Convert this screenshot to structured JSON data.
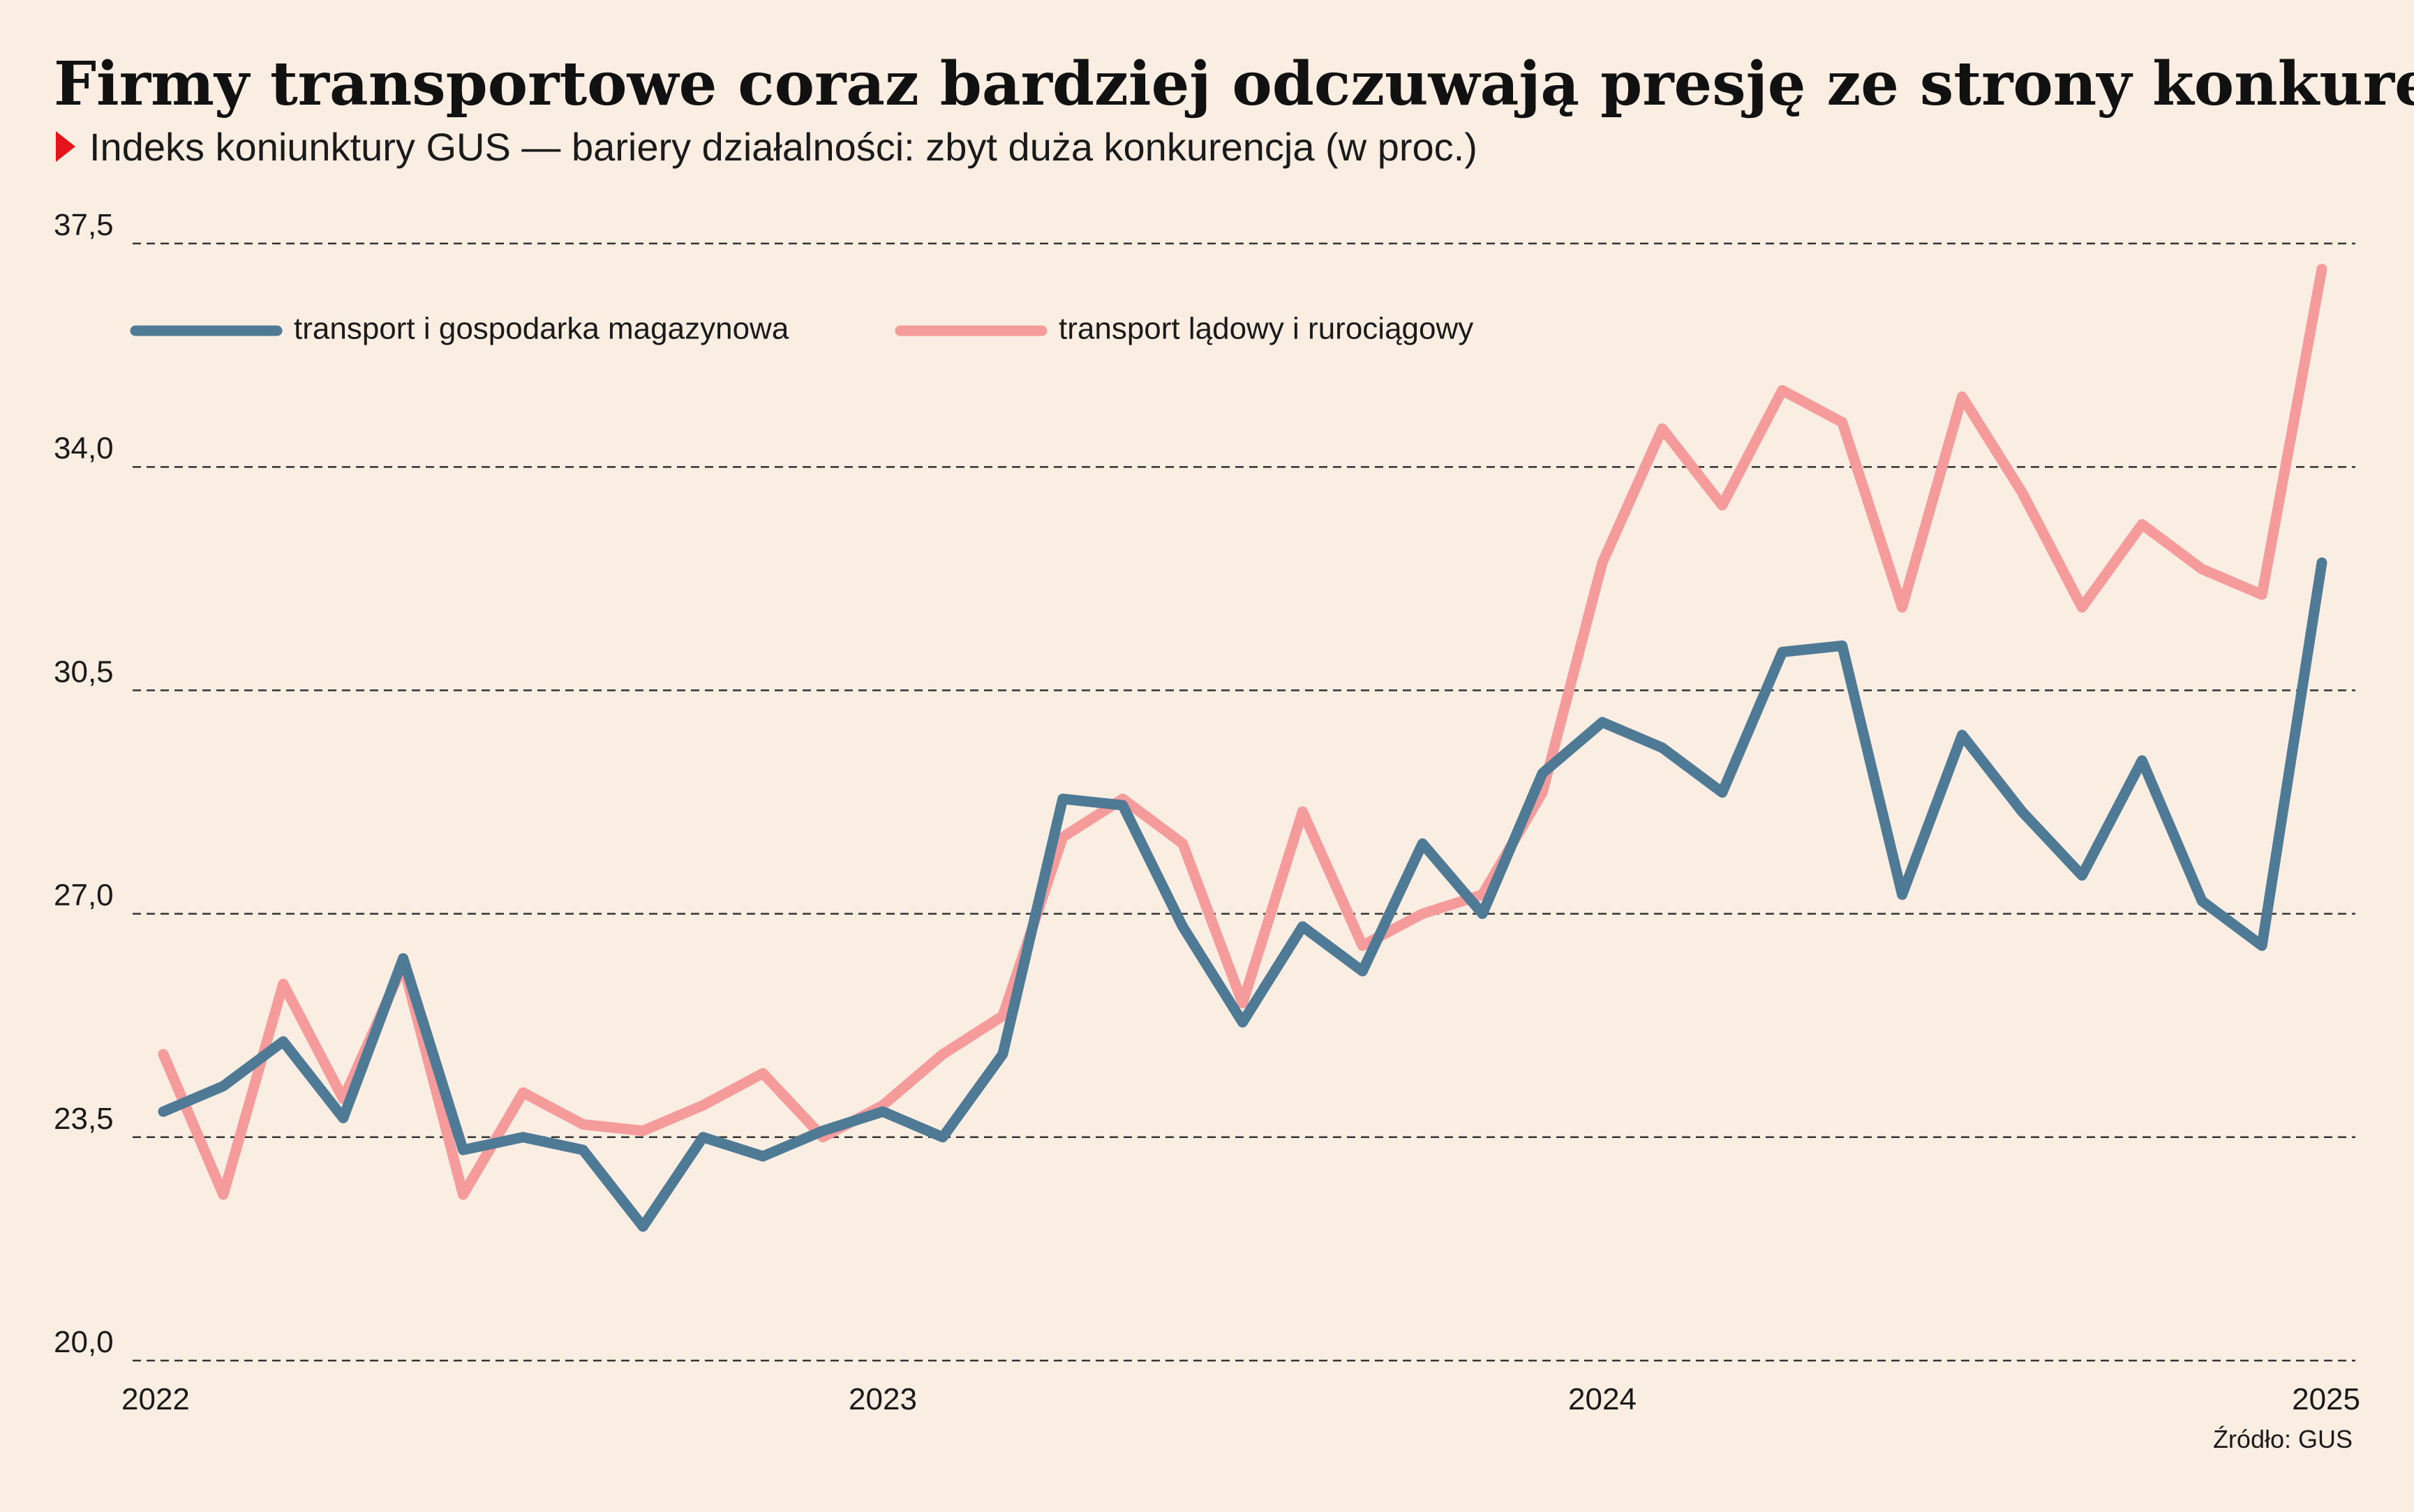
{
  "chart_data": {
    "type": "line",
    "title": "Firmy transportowe coraz bardziej odczuwają presję ze strony konkurencji",
    "subtitle": "Indeks koniunktury GUS — bariery działalności: zbyt duża konkurencja (w proc.)",
    "source": "Źródło: GUS",
    "categories": [
      "2022",
      null,
      null,
      null,
      null,
      null,
      null,
      null,
      null,
      null,
      null,
      null,
      "2023",
      null,
      null,
      null,
      null,
      null,
      null,
      null,
      null,
      null,
      null,
      null,
      "2024",
      null,
      null,
      null,
      null,
      null,
      null,
      null,
      null,
      null,
      null,
      null,
      "2025"
    ],
    "series": [
      {
        "name": "transport i gospodarka magazynowa",
        "color": "#4f7a96",
        "values": [
          23.9,
          24.3,
          25.0,
          23.8,
          26.3,
          23.3,
          23.5,
          23.3,
          22.1,
          23.5,
          23.2,
          23.6,
          23.9,
          23.5,
          24.8,
          28.8,
          28.7,
          26.8,
          25.3,
          26.8,
          26.1,
          28.1,
          27.0,
          29.2,
          30.0,
          29.6,
          28.9,
          31.1,
          31.2,
          27.3,
          29.8,
          28.6,
          27.6,
          29.4,
          27.2,
          26.5,
          32.5
        ]
      },
      {
        "name": "transport lądowy i rurociągowy",
        "color": "#f59b9b",
        "values": [
          24.8,
          22.6,
          25.9,
          24.1,
          26.2,
          22.6,
          24.2,
          23.7,
          23.6,
          24.0,
          24.5,
          23.5,
          24.0,
          24.8,
          25.4,
          28.2,
          28.8,
          28.1,
          25.6,
          28.6,
          26.5,
          27.0,
          27.3,
          28.9,
          32.5,
          34.6,
          33.4,
          35.2,
          34.7,
          31.8,
          35.1,
          33.6,
          31.8,
          33.1,
          32.4,
          32.0,
          37.1
        ]
      }
    ],
    "ylim": [
      20,
      37.5
    ],
    "yticks": [
      {
        "value": 20,
        "label": "20,0"
      },
      {
        "value": 23.5,
        "label": "23,5"
      },
      {
        "value": 27,
        "label": "27,0"
      },
      {
        "value": 30.5,
        "label": "30,5"
      },
      {
        "value": 34,
        "label": "34,0"
      },
      {
        "value": 37.5,
        "label": "37,5"
      }
    ],
    "grid": true
  }
}
